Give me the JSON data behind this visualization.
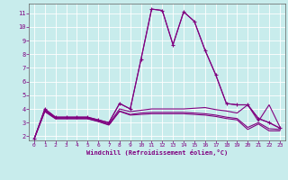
{
  "xlabel": "Windchill (Refroidissement éolien,°C)",
  "xlim": [
    -0.5,
    23.5
  ],
  "ylim": [
    1.7,
    11.7
  ],
  "yticks": [
    2,
    3,
    4,
    5,
    6,
    7,
    8,
    9,
    10,
    11
  ],
  "xticks": [
    0,
    1,
    2,
    3,
    4,
    5,
    6,
    7,
    8,
    9,
    10,
    11,
    12,
    13,
    14,
    15,
    16,
    17,
    18,
    19,
    20,
    21,
    22,
    23
  ],
  "bg_color": "#c8ecec",
  "line_color": "#800080",
  "grid_color": "#ffffff",
  "series": [
    {
      "x": [
        0,
        1,
        2,
        3,
        4,
        5,
        6,
        7,
        8,
        9,
        10,
        11,
        12,
        13,
        14,
        15,
        16,
        17,
        18,
        19,
        20,
        21,
        22,
        23
      ],
      "y": [
        1.8,
        4.0,
        3.4,
        3.4,
        3.4,
        3.4,
        3.2,
        3.0,
        4.4,
        4.0,
        7.6,
        11.3,
        11.2,
        8.7,
        11.1,
        10.4,
        8.3,
        6.5,
        4.4,
        4.3,
        4.3,
        3.3,
        3.0,
        2.6
      ],
      "marker": "+",
      "lw": 0.8
    },
    {
      "x": [
        0,
        1,
        2,
        3,
        4,
        5,
        6,
        7,
        8,
        9,
        10,
        11,
        12,
        13,
        14,
        15,
        16,
        17,
        18,
        19,
        20,
        21,
        22,
        23
      ],
      "y": [
        1.8,
        4.0,
        3.4,
        3.4,
        3.4,
        3.4,
        3.2,
        3.0,
        4.4,
        4.0,
        7.6,
        11.3,
        11.2,
        8.7,
        11.1,
        10.4,
        8.3,
        6.5,
        4.4,
        4.3,
        4.3,
        3.3,
        3.0,
        2.6
      ],
      "marker": null,
      "lw": 0.8
    },
    {
      "x": [
        0,
        1,
        2,
        3,
        4,
        5,
        6,
        7,
        8,
        9,
        10,
        11,
        12,
        13,
        14,
        15,
        16,
        17,
        18,
        19,
        20,
        21,
        22,
        23
      ],
      "y": [
        1.8,
        3.9,
        3.35,
        3.35,
        3.35,
        3.35,
        3.15,
        2.9,
        4.0,
        3.8,
        3.9,
        4.0,
        4.0,
        4.0,
        4.0,
        4.05,
        4.1,
        3.95,
        3.85,
        3.7,
        4.3,
        3.1,
        4.3,
        2.7
      ],
      "marker": null,
      "lw": 0.8
    },
    {
      "x": [
        0,
        1,
        2,
        3,
        4,
        5,
        6,
        7,
        8,
        9,
        10,
        11,
        12,
        13,
        14,
        15,
        16,
        17,
        18,
        19,
        20,
        21,
        22,
        23
      ],
      "y": [
        1.8,
        3.85,
        3.3,
        3.3,
        3.3,
        3.3,
        3.1,
        2.85,
        3.85,
        3.6,
        3.7,
        3.75,
        3.75,
        3.75,
        3.75,
        3.7,
        3.65,
        3.55,
        3.4,
        3.3,
        2.65,
        3.0,
        2.55,
        2.5
      ],
      "marker": null,
      "lw": 0.8
    },
    {
      "x": [
        0,
        1,
        2,
        3,
        4,
        5,
        6,
        7,
        8,
        9,
        10,
        11,
        12,
        13,
        14,
        15,
        16,
        17,
        18,
        19,
        20,
        21,
        22,
        23
      ],
      "y": [
        1.8,
        3.8,
        3.28,
        3.28,
        3.28,
        3.28,
        3.08,
        2.82,
        3.82,
        3.55,
        3.6,
        3.65,
        3.65,
        3.65,
        3.65,
        3.6,
        3.55,
        3.45,
        3.3,
        3.2,
        2.5,
        2.9,
        2.4,
        2.4
      ],
      "marker": null,
      "lw": 0.8
    }
  ]
}
